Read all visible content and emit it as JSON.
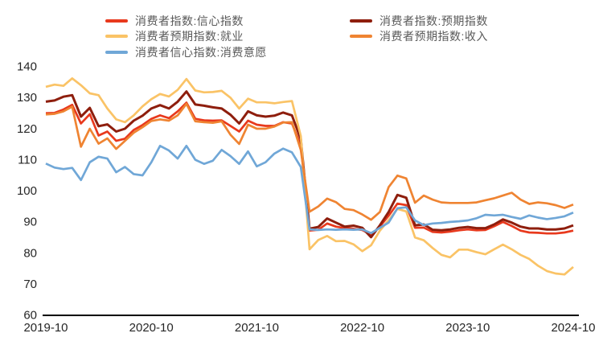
{
  "chart_data": {
    "type": "line",
    "title": "",
    "frequency": "monthly",
    "x_start": "2019-10",
    "x_end": "2024-10",
    "x_tick_labels": [
      "2019-10",
      "2020-10",
      "2021-10",
      "2022-10",
      "2023-10",
      "2024-10"
    ],
    "x_tick_indices": [
      0,
      12,
      24,
      36,
      48,
      60
    ],
    "y_ticks": [
      60,
      70,
      80,
      90,
      100,
      110,
      120,
      130,
      140
    ],
    "ylim": [
      60,
      140
    ],
    "grid": false,
    "background": "#ffffff",
    "axis_line_color": "#000000",
    "tick_label_color": "#262626",
    "legend": {
      "position": "top",
      "text_color": "#595959",
      "column_order": [
        [
          0,
          2,
          4
        ],
        [
          1,
          3
        ]
      ]
    },
    "series": [
      {
        "name": "消费者指数:信心指数",
        "color": "#e8391d",
        "values": [
          124.8,
          124.9,
          126.0,
          127.5,
          121.5,
          124.5,
          117.6,
          118.9,
          115.9,
          116.6,
          119.4,
          121.0,
          123.0,
          124.1,
          123.2,
          125.4,
          128.2,
          123.0,
          122.5,
          122.4,
          122.5,
          120.7,
          118.9,
          122.4,
          121.1,
          120.7,
          120.7,
          121.9,
          121.5,
          114.5,
          87.0,
          87.3,
          89.3,
          88.3,
          87.8,
          87.6,
          87.2,
          85.7,
          88.3,
          91.8,
          95.7,
          95.2,
          87.9,
          88.0,
          86.6,
          86.4,
          86.7,
          87.1,
          87.4,
          87.1,
          87.2,
          88.4,
          89.8,
          88.5,
          87.0,
          86.4,
          86.3,
          86.1,
          86.1,
          86.4,
          87.0
        ]
      },
      {
        "name": "消费者指数:预期指数",
        "color": "#8e1e0d",
        "values": [
          128.5,
          128.9,
          130.1,
          130.6,
          123.7,
          126.5,
          120.6,
          121.2,
          118.9,
          119.8,
          122.4,
          124.0,
          126.3,
          127.4,
          126.3,
          128.5,
          131.8,
          127.6,
          127.2,
          126.7,
          126.3,
          124.3,
          121.5,
          125.4,
          124.1,
          123.7,
          124.0,
          125.0,
          124.1,
          116.5,
          87.6,
          88.2,
          90.9,
          89.6,
          88.3,
          88.6,
          87.9,
          84.9,
          88.7,
          93.0,
          98.5,
          97.6,
          88.7,
          89.0,
          87.3,
          87.1,
          87.4,
          87.9,
          88.2,
          87.8,
          87.8,
          89.0,
          90.6,
          89.6,
          88.3,
          87.7,
          87.7,
          87.4,
          87.4,
          87.7,
          88.7
        ]
      },
      {
        "name": "消费者预期指数:就业",
        "color": "#fac366",
        "values": [
          133.3,
          134.0,
          133.6,
          136.0,
          133.8,
          131.2,
          130.6,
          126.3,
          122.8,
          121.9,
          124.1,
          127.0,
          129.3,
          131.0,
          130.2,
          132.3,
          135.8,
          132.1,
          131.5,
          131.6,
          132.0,
          129.8,
          126.3,
          129.5,
          128.3,
          128.3,
          128.0,
          128.4,
          128.7,
          117.5,
          81.0,
          84.0,
          85.3,
          83.6,
          83.7,
          82.6,
          80.4,
          82.3,
          87.0,
          90.4,
          94.0,
          93.2,
          84.8,
          83.9,
          81.4,
          79.2,
          78.4,
          80.9,
          80.9,
          80.1,
          79.4,
          81.0,
          82.5,
          81.0,
          79.2,
          77.9,
          75.7,
          74.0,
          73.2,
          72.9,
          75.3
        ]
      },
      {
        "name": "消费者预期指数:收入",
        "color": "#ef8432",
        "values": [
          124.4,
          124.6,
          125.4,
          126.9,
          114.0,
          119.8,
          115.0,
          116.7,
          113.3,
          115.9,
          118.5,
          120.3,
          122.3,
          122.8,
          122.4,
          124.1,
          127.8,
          122.2,
          121.9,
          121.7,
          122.2,
          117.9,
          114.9,
          121.1,
          119.8,
          119.8,
          120.5,
          121.8,
          121.9,
          113.0,
          93.1,
          94.8,
          97.3,
          96.2,
          94.0,
          93.6,
          92.2,
          90.5,
          93.0,
          101.0,
          104.7,
          103.8,
          96.0,
          98.3,
          97.0,
          96.1,
          95.9,
          95.9,
          95.9,
          96.1,
          96.8,
          97.4,
          98.3,
          99.2,
          97.0,
          95.6,
          96.1,
          95.8,
          95.2,
          94.3,
          95.4
        ]
      },
      {
        "name": "消费者信心指数:消费意愿",
        "color": "#70a7d7",
        "values": [
          108.6,
          107.3,
          106.8,
          107.2,
          103.3,
          109.0,
          110.8,
          110.2,
          105.8,
          107.5,
          105.2,
          104.8,
          109.0,
          114.3,
          112.8,
          110.2,
          114.3,
          109.8,
          108.5,
          109.5,
          113.0,
          111.0,
          108.5,
          112.5,
          107.7,
          109.0,
          111.8,
          113.4,
          112.2,
          107.5,
          87.4,
          87.2,
          87.4,
          87.3,
          87.4,
          87.3,
          87.4,
          86.2,
          87.9,
          89.6,
          94.2,
          94.5,
          90.3,
          88.8,
          89.3,
          89.5,
          89.8,
          90.0,
          90.3,
          91.0,
          92.1,
          91.9,
          92.1,
          91.4,
          90.8,
          91.9,
          91.2,
          90.7,
          91.1,
          91.6,
          92.8
        ]
      }
    ]
  }
}
